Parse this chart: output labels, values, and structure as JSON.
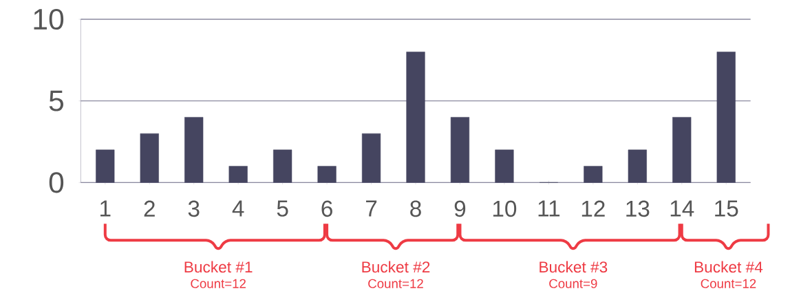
{
  "chart_data": {
    "type": "bar",
    "categories": [
      "1",
      "2",
      "3",
      "4",
      "5",
      "6",
      "7",
      "8",
      "9",
      "10",
      "11",
      "12",
      "13",
      "14",
      "15"
    ],
    "values": [
      2,
      3,
      4,
      1,
      2,
      1,
      3,
      8,
      4,
      2,
      0,
      1,
      2,
      4,
      8
    ],
    "color": "#454560",
    "ylim": [
      0,
      10
    ],
    "yticks": [
      0,
      5,
      10
    ],
    "grid": "y",
    "annotations": [
      "Bucket #1",
      "Count=12",
      "Bucket #2",
      "Count=12",
      "Bucket #3",
      "Count=9",
      "Bucket #4",
      "Count=12"
    ]
  }
}
